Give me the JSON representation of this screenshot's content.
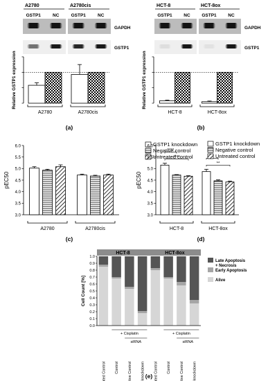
{
  "colors": {
    "blot_bg": "#3a3a3a",
    "blot_bg_light": "#bcbcbc",
    "axis": "#000000",
    "late": "#555555",
    "early": "#a6a6a6",
    "alive": "#d6d6d6",
    "header_bg": "#8c8c8c"
  },
  "chart_data": [
    {
      "id": "a",
      "type": "bar",
      "panel_label": "(a)",
      "blot": {
        "groups": [
          "A2780",
          "A2780cis"
        ],
        "lanes": [
          "GSTP1",
          "NC",
          "GSTP1",
          "NC"
        ],
        "row_labels": [
          "GAPDH",
          "GSTP1"
        ]
      },
      "categories": [
        "A2780",
        "A2780cis"
      ],
      "series": [
        {
          "key": "GSTP1",
          "pattern": "white",
          "values": [
            0.58,
            0.93
          ],
          "errors": [
            0.08,
            0.32
          ]
        },
        {
          "key": "NC",
          "pattern": "check",
          "values": [
            1.0,
            1.0
          ],
          "errors": [
            0,
            0
          ]
        }
      ],
      "ylabel": "Relative GSTP1 expression",
      "ylim": [
        0,
        1.5
      ],
      "yticks": [],
      "reference_line": 1.0
    },
    {
      "id": "b",
      "type": "bar",
      "panel_label": "(b)",
      "blot": {
        "groups": [
          "HCT-8",
          "HCT-8ox"
        ],
        "lanes": [
          "GSTP1",
          "NC",
          "GSTP1",
          "NC"
        ],
        "row_labels": [
          "GAPDH",
          "GSTP1"
        ]
      },
      "categories": [
        "HCT-8",
        "HCT-8ox"
      ],
      "series": [
        {
          "key": "GSTP1",
          "pattern": "white",
          "values": [
            0.08,
            0.05
          ],
          "errors": [
            0.02,
            0.02
          ]
        },
        {
          "key": "NC",
          "pattern": "check",
          "values": [
            1.0,
            1.0
          ],
          "errors": [
            0,
            0
          ]
        }
      ],
      "ylabel": "Relative GSTP1 expression",
      "ylim": [
        0,
        1.5
      ],
      "yticks": [],
      "reference_line": 1.0
    },
    {
      "id": "c",
      "type": "bar",
      "panel_label": "(c)",
      "categories": [
        "A2780",
        "A2780cis"
      ],
      "series": [
        {
          "name": "GSTP1 knockdown",
          "pattern": "white",
          "values": [
            5.02,
            4.72
          ],
          "errors": [
            0.06,
            0.04
          ]
        },
        {
          "name": "Negative control",
          "pattern": "hlines",
          "values": [
            4.93,
            4.68
          ],
          "errors": [
            0.04,
            0.03
          ]
        },
        {
          "name": "Untreated control",
          "pattern": "diag",
          "values": [
            5.08,
            4.72
          ],
          "errors": [
            0.08,
            0.04
          ]
        }
      ],
      "ylabel": "pEC50",
      "ylim": [
        3,
        6
      ],
      "yticks": [
        "3.0",
        "3.5",
        "4.0",
        "4.5",
        "5.0",
        "5.5",
        "6.0"
      ],
      "legend": "top-right"
    },
    {
      "id": "d",
      "type": "bar",
      "panel_label": "(d)",
      "categories": [
        "HCT-8",
        "HCT-8ox"
      ],
      "series": [
        {
          "name": "GSTP1 knockdown",
          "pattern": "white",
          "values": [
            5.15,
            4.87
          ],
          "errors": [
            0.08,
            0.1
          ]
        },
        {
          "name": "Negative control",
          "pattern": "hlines",
          "values": [
            4.72,
            4.47
          ],
          "errors": [
            0.02,
            0.04
          ]
        },
        {
          "name": "Untreated control",
          "pattern": "diag",
          "values": [
            4.67,
            4.42
          ],
          "errors": [
            0.02,
            0.04
          ]
        }
      ],
      "ylabel": "pEC50",
      "ylim": [
        3,
        6
      ],
      "yticks": [
        "3.0",
        "3.5",
        "4.0",
        "4.5",
        "5.0",
        "5.5",
        "6.0"
      ],
      "legend": "top-right",
      "significance": [
        {
          "group": 0,
          "from": 0,
          "to": 1,
          "label": "****"
        },
        {
          "group": 0,
          "from": 0,
          "to": 2,
          "label": "****"
        },
        {
          "group": 1,
          "from": 0,
          "to": 1,
          "label": "**"
        },
        {
          "group": 1,
          "from": 0,
          "to": 2,
          "label": "**"
        }
      ]
    },
    {
      "id": "e",
      "type": "bar",
      "stacked": true,
      "panel_label": "(e)",
      "groups": [
        "HCT-8",
        "HCT-8ox"
      ],
      "categories": [
        "Untreated Control",
        "Control",
        "Negative Control",
        "GSTP1 knockdown",
        "Untreated Control",
        "Control",
        "Negative Control",
        "GSTP1 knockdown"
      ],
      "series": [
        {
          "name": "Alive",
          "values": [
            0.85,
            0.68,
            0.53,
            0.18,
            0.8,
            0.68,
            0.58,
            0.32
          ]
        },
        {
          "name": "Early Apoptosis",
          "values": [
            0.03,
            0.02,
            0.03,
            0.03,
            0.03,
            0.02,
            0.05,
            0.05
          ]
        },
        {
          "name": "Late Apoptosis\n+ Necrosis",
          "values": [
            0.12,
            0.3,
            0.44,
            0.79,
            0.17,
            0.3,
            0.37,
            0.63
          ]
        }
      ],
      "ylabel": "Cell Count [%]",
      "ylim": [
        0,
        1
      ],
      "yticks": [
        "0.0",
        "0.1",
        "0.2",
        "0.3",
        "0.4",
        "0.5",
        "0.6",
        "0.7",
        "0.8",
        "0.9",
        "1.0"
      ],
      "legend": "right",
      "annotations": {
        "cisplatin": "+ Cisplatin",
        "sirna": "siRNA"
      }
    }
  ]
}
